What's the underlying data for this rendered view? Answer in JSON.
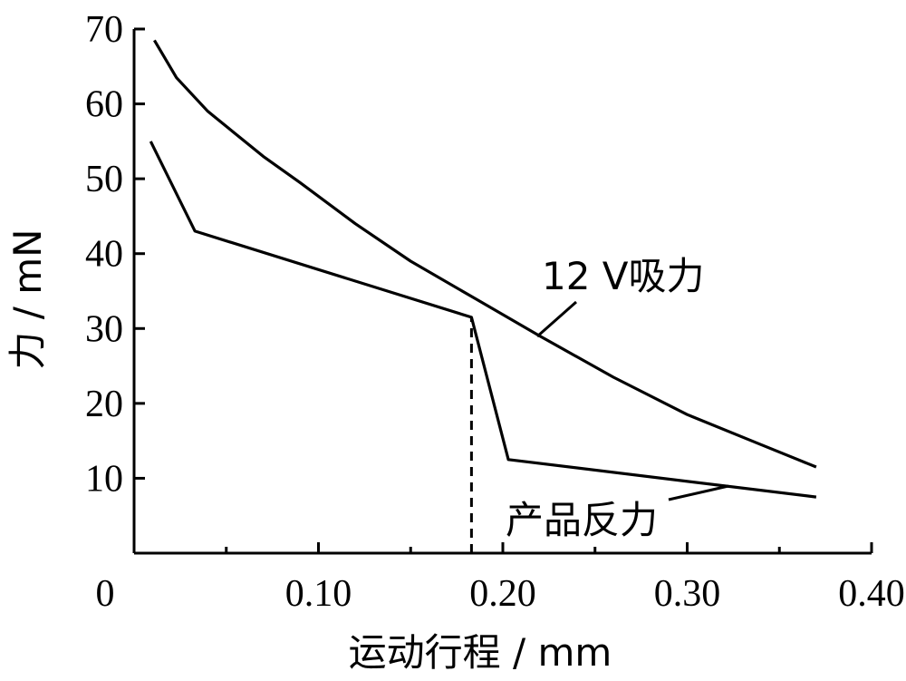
{
  "chart_data": {
    "type": "line",
    "xlabel": "运动行程 / mm",
    "ylabel": "力 / mN",
    "xlim": [
      0,
      0.4
    ],
    "ylim": [
      0,
      70
    ],
    "origin_label": "0",
    "x_ticks": [
      "0.10",
      "0.20",
      "0.30",
      "0.40"
    ],
    "x_tick_values": [
      0.1,
      0.2,
      0.3,
      0.4
    ],
    "y_ticks": [
      "10",
      "20",
      "30",
      "40",
      "50",
      "60",
      "70"
    ],
    "y_tick_values": [
      10,
      20,
      30,
      40,
      50,
      60,
      70
    ],
    "series": [
      {
        "name": "12 V吸力",
        "x": [
          0.011,
          0.023,
          0.04,
          0.07,
          0.09,
          0.12,
          0.15,
          0.185,
          0.22,
          0.26,
          0.3,
          0.34,
          0.37
        ],
        "y": [
          68.5,
          63.5,
          59.0,
          53.0,
          49.5,
          44.0,
          39.0,
          34.0,
          29.0,
          23.5,
          18.5,
          14.5,
          11.5
        ]
      },
      {
        "name": "产品反力",
        "x": [
          0.009,
          0.033,
          0.183,
          0.203,
          0.37
        ],
        "y": [
          55.0,
          43.0,
          31.5,
          12.5,
          7.5
        ]
      }
    ],
    "annotations": [
      {
        "type": "dashed-vertical",
        "x": 0.183,
        "y_from": 0,
        "y_to": 31.5
      }
    ],
    "grid": false,
    "legend": "none"
  }
}
